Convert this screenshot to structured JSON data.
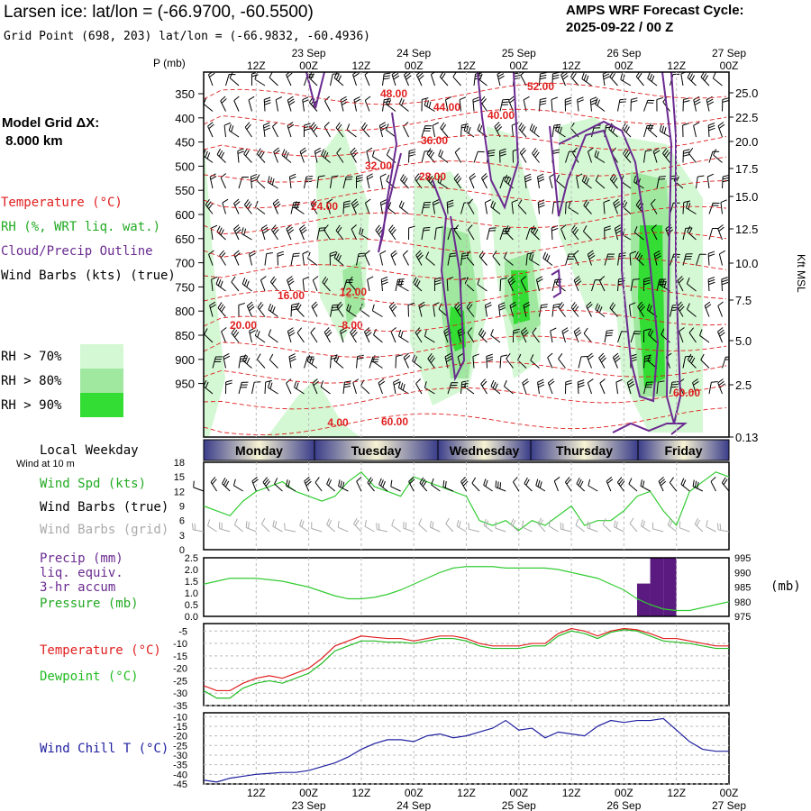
{
  "header": {
    "title": "Larsen ice:  lat/lon = (-66.9700, -60.5500)",
    "subtitle": "Grid Point (698, 203) lat/lon = (-66.9832, -60.4936)",
    "cycle_line1": "AMPS WRF Forecast Cycle:",
    "cycle_line2": "2025-09-22 / 00  Z",
    "grid_label_line1": "Model Grid ΔX:",
    "grid_label_line2": " 8.000 km"
  },
  "colors": {
    "temperature": "#e02020",
    "rh": "#22aa22",
    "cloud": "#6a2a90",
    "wind_speed": "#33cc33",
    "wind_grid": "#aaaaaa",
    "precip": "#5a1a80",
    "dewpoint": "#22bb22",
    "wind_chill": "#2020a0",
    "rh70": "#d4f8d4",
    "rh80": "#a0e8a0",
    "rh90": "#33dd33"
  },
  "time_axis": {
    "top_times": [
      "12Z",
      "00Z",
      "12Z",
      "00Z",
      "12Z",
      "00Z",
      "12Z",
      "00Z",
      "12Z",
      "00Z"
    ],
    "top_dates": [
      "23 Sep",
      "24 Sep",
      "25 Sep",
      "26 Sep",
      "27 Sep"
    ],
    "bottom_times": [
      "12Z",
      "00Z",
      "12Z",
      "00Z",
      "12Z",
      "00Z",
      "12Z",
      "00Z",
      "12Z",
      "00Z"
    ],
    "bottom_dates": [
      "23 Sep",
      "24 Sep",
      "25 Sep",
      "26 Sep",
      "27 Sep"
    ],
    "weekdays": [
      "Monday",
      "Tuesday",
      "Wednesday",
      "Thursday",
      "Friday"
    ],
    "weekday_label": "Local Weekday",
    "wind_10m_label": "Wind at 10 m"
  },
  "legend": {
    "temperature": "Temperature (°C)",
    "rh": "RH (%, WRT liq. wat.)",
    "cloud": "Cloud/Precip Outline",
    "wind_barbs": "Wind Barbs (kts) (true)",
    "rh70": "RH > 70%",
    "rh80": "RH > 80%",
    "rh90": "RH > 90%",
    "wind_spd": "Wind Spd (kts)",
    "wind_barbs_true": "Wind Barbs (true)",
    "wind_barbs_grid": "Wind Barbs (grid)",
    "precip1": "Precip (mm)",
    "precip2": "liq. equiv.",
    "precip3": "3-hr accum",
    "pressure": "Pressure (mb)",
    "pressure_unit": "(mb)",
    "temp_panel": "Temperature (°C)",
    "dewpoint": "Dewpoint (°C)",
    "wind_chill": "Wind Chill T (°C)"
  },
  "chart_data": [
    {
      "type": "heatmap",
      "ylabel_left": "P (mb)",
      "ylabel_right": "Kft MSL",
      "pressure_ticks": [
        "350",
        "400",
        "450",
        "500",
        "550",
        "600",
        "650",
        "700",
        "750",
        "800",
        "850",
        "900",
        "950"
      ],
      "height_ticks": [
        "25.0",
        "22.5",
        "20.0",
        "17.5",
        "15.0",
        "12.5",
        "10.0",
        "7.5",
        "5.0",
        "2.5",
        "0.13"
      ],
      "temperature_contour_labels": [
        "48.00",
        "44.00",
        "52.00",
        "40.00",
        "36.00",
        "32.00",
        "28.00",
        "24.00",
        "16.00",
        "12.00",
        "20.00",
        "8.00",
        "4.00",
        "60.00",
        "60.00"
      ]
    },
    {
      "type": "line",
      "panel": "Wind speed at 10 m",
      "yticks": [
        "18",
        "15",
        "12",
        "9",
        "6",
        "3",
        "0"
      ],
      "ylim": [
        0,
        18
      ],
      "x": [
        0,
        3,
        6,
        9,
        12,
        15,
        18,
        21,
        24,
        27,
        30,
        33,
        36,
        39,
        42,
        45,
        48,
        51,
        54,
        57,
        60,
        63,
        66,
        69,
        72,
        75,
        78,
        81,
        84,
        87,
        90,
        93,
        96,
        99,
        102,
        105,
        108,
        111,
        114,
        117,
        120
      ],
      "series": [
        {
          "values": [
            9,
            8,
            7,
            10,
            12,
            13,
            14,
            12,
            11,
            10,
            11,
            14,
            16,
            13,
            12,
            11,
            15,
            14,
            13,
            12,
            11,
            6,
            5,
            6,
            4,
            6,
            5,
            7,
            9,
            5,
            6,
            6,
            8,
            11,
            12,
            8,
            5,
            12,
            14,
            16,
            15
          ]
        }
      ]
    },
    {
      "type": "bar",
      "panel": "Precip and pressure",
      "yticks_left": [
        "2.5",
        "2.0",
        "1.5",
        "1.0",
        "0.5",
        "0.0"
      ],
      "yticks_right": [
        "995",
        "990",
        "985",
        "980",
        "975"
      ],
      "ylim_left": [
        0,
        2.5
      ],
      "ylim_right": [
        975,
        995
      ],
      "precip_x": [
        99,
        102,
        105
      ],
      "precip_values": [
        1.4,
        2.5,
        2.5
      ],
      "pressure_x": [
        0,
        3,
        6,
        9,
        12,
        15,
        18,
        21,
        24,
        27,
        30,
        33,
        36,
        39,
        42,
        45,
        48,
        51,
        54,
        57,
        60,
        63,
        66,
        69,
        72,
        75,
        78,
        81,
        84,
        87,
        90,
        93,
        96,
        99,
        102,
        105,
        108,
        111,
        114,
        117,
        120
      ],
      "pressure_values": [
        986,
        987,
        988,
        988,
        988,
        987.5,
        987,
        986,
        985,
        983.5,
        982,
        981,
        981,
        981.5,
        982.5,
        984,
        986,
        988,
        990,
        991.5,
        992,
        992,
        992,
        991.5,
        991.5,
        991.5,
        991.5,
        991,
        990,
        989,
        988,
        986,
        984,
        981,
        979,
        977.5,
        977,
        977,
        978,
        979,
        980
      ]
    },
    {
      "type": "line",
      "panel": "Temperature and dewpoint",
      "yticks": [
        "-5",
        "-10",
        "-15",
        "-20",
        "-25",
        "-30",
        "-35"
      ],
      "ylim": [
        -35,
        -2
      ],
      "x": [
        0,
        3,
        6,
        9,
        12,
        15,
        18,
        21,
        24,
        27,
        30,
        33,
        36,
        39,
        42,
        45,
        48,
        51,
        54,
        57,
        60,
        63,
        66,
        69,
        72,
        75,
        78,
        81,
        84,
        87,
        90,
        93,
        96,
        99,
        102,
        105,
        108,
        111,
        114,
        117,
        120
      ],
      "series": [
        {
          "name": "Temperature (°C)",
          "values": [
            -27,
            -29,
            -29,
            -26,
            -24,
            -23,
            -24,
            -22,
            -20,
            -16,
            -11,
            -9,
            -7,
            -7.5,
            -8,
            -8,
            -9,
            -8,
            -7,
            -7,
            -8,
            -10,
            -11,
            -11,
            -11,
            -10,
            -10,
            -6,
            -4,
            -5,
            -7,
            -5,
            -4,
            -4.5,
            -6,
            -8,
            -8,
            -9,
            -10,
            -11,
            -11
          ]
        },
        {
          "name": "Dewpoint (°C)",
          "values": [
            -29,
            -32,
            -32,
            -28,
            -26,
            -25,
            -26,
            -24,
            -22,
            -18,
            -13,
            -11,
            -9,
            -9,
            -9.5,
            -9.5,
            -10,
            -9,
            -8,
            -8,
            -9,
            -11,
            -12,
            -12,
            -12,
            -11,
            -11,
            -7,
            -5,
            -6,
            -8,
            -5.5,
            -4.5,
            -5,
            -7,
            -9,
            -9.5,
            -10,
            -11,
            -12,
            -12
          ]
        }
      ]
    },
    {
      "type": "line",
      "panel": "Wind chill",
      "yticks": [
        "-10",
        "-15",
        "-20",
        "-25",
        "-30",
        "-35",
        "-40",
        "-45"
      ],
      "ylim": [
        -45,
        -8
      ],
      "x": [
        0,
        3,
        6,
        9,
        12,
        15,
        18,
        21,
        24,
        27,
        30,
        33,
        36,
        39,
        42,
        45,
        48,
        51,
        54,
        57,
        60,
        63,
        66,
        69,
        72,
        75,
        78,
        81,
        84,
        87,
        90,
        93,
        96,
        99,
        102,
        105,
        108,
        111,
        114,
        117,
        120
      ],
      "series": [
        {
          "name": "Wind Chill T (°C)",
          "values": [
            -43,
            -44,
            -42,
            -41,
            -40,
            -39.5,
            -39,
            -39,
            -38,
            -36,
            -34,
            -31,
            -27,
            -24,
            -22,
            -22,
            -23,
            -20,
            -19,
            -21,
            -20,
            -18,
            -16,
            -12,
            -17,
            -16,
            -21,
            -18,
            -19,
            -20,
            -15,
            -12,
            -13,
            -12,
            -12,
            -11,
            -17,
            -23,
            -27,
            -28,
            -28
          ]
        }
      ]
    }
  ]
}
